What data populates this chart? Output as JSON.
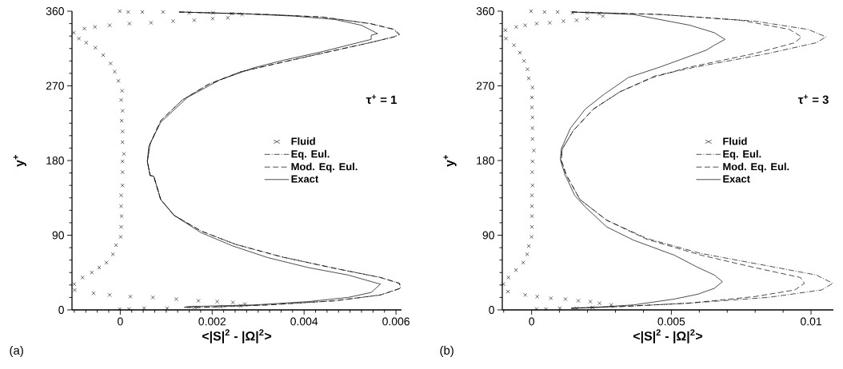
{
  "chart_data": [
    {
      "type": "line",
      "xlabel": "<|S|$^{2}$ - |Ω|$^{2}$>",
      "ylabel": "y$^{+}$",
      "annotations": [
        "(a)",
        "τ$^{+}$ = 1"
      ],
      "legend": "right",
      "xlim": [
        -0.00105,
        0.00612
      ],
      "ylim": [
        0,
        360
      ],
      "xticks": [
        0,
        0.002,
        0.004,
        0.006,
        {
          "value": -0.001,
          "label": null
        },
        {
          "value": -0.00075,
          "label": null
        },
        {
          "value": -0.0005,
          "label": null
        },
        {
          "value": -0.00025,
          "label": null
        },
        {
          "value": 0.00025,
          "label": null
        },
        {
          "value": 0.0005,
          "label": null
        },
        {
          "value": 0.00075,
          "label": null
        },
        {
          "value": 0.001,
          "label": null
        },
        {
          "value": 0.00125,
          "label": null
        },
        {
          "value": 0.0015,
          "label": null
        },
        {
          "value": 0.00175,
          "label": null
        },
        {
          "value": 0.00225,
          "label": null
        },
        {
          "value": 0.0025,
          "label": null
        },
        {
          "value": 0.00275,
          "label": null
        },
        {
          "value": 0.003,
          "label": null
        },
        {
          "value": 0.00325,
          "label": null
        },
        {
          "value": 0.0035,
          "label": null
        },
        {
          "value": 0.00375,
          "label": null
        },
        {
          "value": 0.00425,
          "label": null
        },
        {
          "value": 0.0045,
          "label": null
        },
        {
          "value": 0.00475,
          "label": null
        },
        {
          "value": 0.005,
          "label": null
        },
        {
          "value": 0.00525,
          "label": null
        },
        {
          "value": 0.0055,
          "label": null
        },
        {
          "value": 0.00575,
          "label": null
        }
      ],
      "yticks": [
        0,
        90,
        180,
        270,
        360,
        {
          "value": 15,
          "label": null
        },
        {
          "value": 30,
          "label": null
        },
        {
          "value": 45,
          "label": null
        },
        {
          "value": 60,
          "label": null
        },
        {
          "value": 75,
          "label": null
        },
        {
          "value": 105,
          "label": null
        },
        {
          "value": 120,
          "label": null
        },
        {
          "value": 135,
          "label": null
        },
        {
          "value": 150,
          "label": null
        },
        {
          "value": 165,
          "label": null
        },
        {
          "value": 195,
          "label": null
        },
        {
          "value": 210,
          "label": null
        },
        {
          "value": 225,
          "label": null
        },
        {
          "value": 240,
          "label": null
        },
        {
          "value": 255,
          "label": null
        },
        {
          "value": 285,
          "label": null
        },
        {
          "value": 300,
          "label": null
        },
        {
          "value": 315,
          "label": null
        },
        {
          "value": 330,
          "label": null
        },
        {
          "value": 345,
          "label": null
        }
      ],
      "series": [
        {
          "name": "Fluid",
          "type": "scatter",
          "marker": "cross",
          "color": "#000000",
          "x": [
            -1e-05,
            0.000175,
            0.00048,
            0.00093,
            0.0015,
            0.00202,
            0.00243,
            0.00265,
            0.00234,
            0.00201,
            0.00161,
            0.00115,
            0.00067,
            0.0002,
            -0.00023,
            -0.00055,
            -0.00078,
            -0.00101,
            -0.0009,
            -0.00074,
            -0.00054,
            -0.00037,
            -0.00021,
            -0.00012,
            -4e-05,
            4e-05,
            2e-05,
            5e-05,
            3e-05,
            5e-05,
            5e-05,
            8e-05,
            5e-05,
            5e-05,
            5e-05,
            2e-05,
            2e-05,
            3e-05,
            2e-05,
            1e-05,
            -9e-05,
            -0.00016,
            -0.0003,
            -0.00046,
            -0.00062,
            -0.00082,
            -0.001,
            -0.00099,
            -0.00058,
            -0.00023,
            0.00022,
            0.00071,
            0.00122,
            0.0017,
            0.00211,
            0.00245,
            0.00271,
            0.00262,
            0.00218,
            0.00162,
            0.00102,
            0.00052,
            0.00019,
            -1e-05
          ],
          "values": [
            360,
            359,
            359,
            359,
            358,
            358,
            357,
            356,
            352,
            351,
            349,
            348,
            346,
            345,
            343,
            341,
            339,
            334,
            327,
            322,
            316,
            307,
            297,
            287,
            276,
            264,
            253,
            240,
            228,
            215,
            202,
            188,
            179,
            166,
            150,
            138,
            125,
            113,
            100,
            88,
            78,
            67,
            57,
            51,
            45,
            39,
            31,
            24,
            20,
            18,
            16,
            15,
            13,
            11,
            10,
            9,
            7,
            5,
            4,
            3,
            2,
            2,
            1,
            1
          ]
        },
        {
          "name": "Eq. Eul.",
          "type": "line",
          "line_style": "dashdot",
          "color": "#000000",
          "x": [
            0.00128,
            0.00321,
            0.00438,
            0.00545,
            0.00597,
            0.00608,
            0.00596,
            0.00543,
            0.00436,
            0.00348,
            0.00262,
            0.00192,
            0.00135,
            0.00088,
            0.00065,
            0.00059,
            0.00065,
            0.00073,
            0.00088,
            0.00117,
            0.00176,
            0.00251,
            0.00351,
            0.00468,
            0.00567,
            0.00608,
            0.0061,
            0.00567,
            0.00468,
            0.00322,
            0.00176,
            0.00139
          ],
          "values": [
            359,
            356,
            353,
            345,
            338,
            332,
            329,
            322,
            309,
            298,
            287,
            272,
            253,
            228,
            200,
            179,
            162,
            161,
            133,
            114,
            95,
            79,
            64,
            50,
            39,
            32,
            26,
            18,
            11,
            6,
            3,
            3
          ]
        },
        {
          "name": "Mod. Eq. Eul.",
          "type": "line",
          "line_style": "dashed",
          "color": "#000000",
          "x": [
            0.00128,
            0.00321,
            0.00438,
            0.00543,
            0.00595,
            0.00606,
            0.00595,
            0.00543,
            0.00438,
            0.0035,
            0.00263,
            0.00193,
            0.00135,
            0.00088,
            0.00065,
            0.00059,
            0.00065,
            0.00073,
            0.00088,
            0.00117,
            0.00176,
            0.00251,
            0.0035,
            0.00467,
            0.00566,
            0.00607,
            0.00609,
            0.00566,
            0.00467,
            0.00321,
            0.00176,
            0.00139
          ],
          "values": [
            359,
            356,
            353,
            345,
            338,
            332,
            329,
            322,
            309,
            298,
            287,
            272,
            253,
            228,
            200,
            179,
            162,
            161,
            133,
            114,
            95,
            79,
            64,
            50,
            39,
            32,
            26,
            18,
            11,
            6,
            3,
            3
          ]
        },
        {
          "name": "Exact",
          "type": "line",
          "line_style": "solid",
          "color": "#000000",
          "x": [
            0.00128,
            0.00263,
            0.0038,
            0.00467,
            0.00525,
            0.0056,
            0.00546,
            0.00546,
            0.00438,
            0.00356,
            0.00292,
            0.00216,
            0.00146,
            0.00088,
            0.00062,
            0.00059,
            0.00065,
            0.00073,
            0.00088,
            0.00117,
            0.00176,
            0.00245,
            0.00321,
            0.00409,
            0.00496,
            0.00566,
            0.00546,
            0.00496,
            0.00409,
            0.00292,
            0.00146,
            0.00139
          ],
          "values": [
            359,
            357,
            354,
            350,
            343,
            333,
            331,
            326,
            311,
            301,
            292,
            277,
            256,
            226,
            197,
            179,
            162,
            161,
            133,
            114,
            93,
            77,
            63,
            51,
            42,
            31,
            21,
            15,
            10,
            6,
            4,
            3
          ]
        }
      ]
    },
    {
      "type": "line",
      "xlabel": "<|S|$^{2}$ - |Ω|$^{2}$>",
      "ylabel": "y$^{+}$",
      "annotations": [
        "(b)",
        "τ$^{+}$ = 3"
      ],
      "legend": "right",
      "xlim": [
        -0.00105,
        0.0108
      ],
      "ylim": [
        0,
        360
      ],
      "xticks": [
        0,
        0.005,
        0.01,
        {
          "value": -0.001,
          "label": null
        },
        {
          "value": 0.001,
          "label": null
        },
        {
          "value": 0.002,
          "label": null
        },
        {
          "value": 0.003,
          "label": null
        },
        {
          "value": 0.004,
          "label": null
        },
        {
          "value": 0.006,
          "label": null
        },
        {
          "value": 0.007,
          "label": null
        },
        {
          "value": 0.008,
          "label": null
        },
        {
          "value": 0.009,
          "label": null
        }
      ],
      "yticks": [
        0,
        90,
        180,
        270,
        360,
        {
          "value": 15,
          "label": null
        },
        {
          "value": 30,
          "label": null
        },
        {
          "value": 45,
          "label": null
        },
        {
          "value": 60,
          "label": null
        },
        {
          "value": 75,
          "label": null
        },
        {
          "value": 105,
          "label": null
        },
        {
          "value": 120,
          "label": null
        },
        {
          "value": 135,
          "label": null
        },
        {
          "value": 150,
          "label": null
        },
        {
          "value": 165,
          "label": null
        },
        {
          "value": 195,
          "label": null
        },
        {
          "value": 210,
          "label": null
        },
        {
          "value": 225,
          "label": null
        },
        {
          "value": 240,
          "label": null
        },
        {
          "value": 255,
          "label": null
        },
        {
          "value": 285,
          "label": null
        },
        {
          "value": 300,
          "label": null
        },
        {
          "value": 315,
          "label": null
        },
        {
          "value": 330,
          "label": null
        },
        {
          "value": 345,
          "label": null
        }
      ],
      "series": [
        {
          "name": "Fluid",
          "type": "scatter",
          "marker": "cross",
          "color": "#000000",
          "x": [
            -2e-05,
            0.00046,
            0.00093,
            0.00146,
            0.00199,
            0.00242,
            0.00255,
            0.00199,
            0.00161,
            0.00114,
            0.00065,
            0.00018,
            -0.00023,
            -0.00055,
            -0.00094,
            -0.00092,
            -0.00063,
            -0.00042,
            -0.00027,
            -0.00015,
            -0.0001,
            3e-05,
            1e-05,
            1e-05,
            3e-05,
            3e-05,
            3e-05,
            8e-05,
            3e-05,
            2e-05,
            3e-05,
            1e-05,
            1e-05,
            1e-05,
            1e-05,
            0,
            -0.0001,
            -0.00016,
            -0.0003,
            -0.00056,
            -0.00083,
            -0.00101,
            -0.00085,
            -0.00023,
            0.0002,
            0.00069,
            0.00121,
            0.00167,
            0.0021,
            0.00243,
            0.00285,
            0.00218,
            0.00161,
            0.00101,
            0.00051,
            0.00017
          ],
          "values": [
            360,
            359,
            359,
            358,
            358,
            357,
            354,
            351,
            349,
            348,
            346,
            345,
            343,
            341,
            337,
            327,
            319,
            310,
            300,
            290,
            279,
            268,
            256,
            244,
            232,
            219,
            206,
            192,
            179,
            166,
            150,
            138,
            125,
            113,
            100,
            88,
            77,
            67,
            57,
            48,
            39,
            31,
            22,
            18,
            16,
            14,
            13,
            11,
            10,
            8,
            6,
            3,
            2,
            2,
            1,
            1
          ]
        },
        {
          "name": "Eq. Eul.",
          "type": "line",
          "line_style": "dashdot",
          "color": "#000000",
          "x": [
            0.00144,
            0.00462,
            0.00798,
            0.0099,
            0.01053,
            0.01019,
            0.00846,
            0.00577,
            0.00442,
            0.00317,
            0.00221,
            0.00149,
            0.0011,
            0.00104,
            0.00125,
            0.0013,
            0.00173,
            0.00269,
            0.00413,
            0.00606,
            0.00846,
            0.01019,
            0.01078,
            0.01038,
            0.00846,
            0.00558,
            0.00317,
            0.00142
          ],
          "values": [
            359,
            356,
            348,
            338,
            329,
            322,
            309,
            292,
            282,
            263,
            242,
            216,
            194,
            181,
            162,
            159,
            133,
            108,
            86,
            68,
            53,
            42,
            32,
            24,
            15,
            8,
            4,
            2
          ]
        },
        {
          "name": "Mod. Eq. Eul.",
          "type": "line",
          "line_style": "dashed",
          "color": "#000000",
          "x": [
            0.00144,
            0.00462,
            0.0075,
            0.00923,
            0.00966,
            0.00942,
            0.00798,
            0.00558,
            0.00433,
            0.00317,
            0.00221,
            0.00149,
            0.0011,
            0.00106,
            0.00125,
            0.0013,
            0.00173,
            0.00269,
            0.00413,
            0.00606,
            0.00798,
            0.00962,
            0.00976,
            0.00942,
            0.00798,
            0.00558,
            0.00317,
            0.00142
          ],
          "values": [
            359,
            356,
            349,
            338,
            329,
            322,
            309,
            292,
            280,
            263,
            242,
            216,
            194,
            181,
            162,
            159,
            133,
            108,
            85,
            66,
            51,
            39,
            32,
            24,
            16,
            8,
            4,
            2
          ]
        },
        {
          "name": "Exact",
          "type": "line",
          "line_style": "solid",
          "color": "#000000",
          "x": [
            0.00144,
            0.00365,
            0.00567,
            0.00654,
            0.00692,
            0.00654,
            0.00625,
            0.00462,
            0.00346,
            0.0026,
            0.00192,
            0.00139,
            0.00106,
            0.00103,
            0.0012,
            0.00125,
            0.00154,
            0.00192,
            0.00269,
            0.00365,
            0.0051,
            0.00596,
            0.00654,
            0.00683,
            0.00654,
            0.00596,
            0.0051,
            0.00365,
            0.00221,
            0.00142
          ],
          "values": [
            359,
            356,
            343,
            334,
            326,
            319,
            313,
            293,
            280,
            260,
            242,
            219,
            194,
            181,
            162,
            159,
            138,
            124,
            100,
            84,
            66,
            51,
            42,
            34,
            26,
            19,
            13,
            6,
            3,
            2
          ]
        }
      ]
    }
  ]
}
